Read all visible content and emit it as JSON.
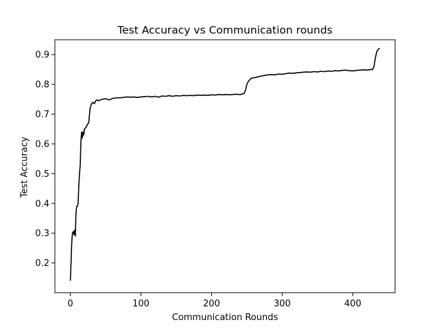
{
  "chart_data": {
    "type": "line",
    "title": "Test Accuracy vs Communication rounds",
    "xlabel": "Communication Rounds",
    "ylabel": "Test Accuracy",
    "xlim": [
      -21.9,
      459.9
    ],
    "ylim": [
      0.1,
      0.95
    ],
    "xticks": [
      "0",
      "100",
      "200",
      "300",
      "400"
    ],
    "yticks": [
      "0.2",
      "0.3",
      "0.4",
      "0.5",
      "0.6",
      "0.7",
      "0.8",
      "0.9"
    ],
    "grid": false,
    "line_color": "#000000",
    "series": [
      {
        "x": [
          0,
          1,
          2,
          3,
          4,
          5,
          6,
          7,
          8,
          9,
          10,
          11,
          12,
          13,
          14,
          15,
          16,
          17,
          18,
          19,
          20,
          22,
          24,
          26,
          28,
          30,
          32,
          34,
          36,
          38,
          40,
          45,
          50,
          55,
          60,
          65,
          70,
          75,
          80,
          85,
          90,
          95,
          100,
          105,
          110,
          115,
          120,
          125,
          130,
          135,
          140,
          145,
          150,
          155,
          160,
          165,
          170,
          175,
          180,
          185,
          190,
          195,
          200,
          205,
          210,
          215,
          220,
          225,
          230,
          235,
          240,
          243,
          246,
          248,
          250,
          252,
          254,
          256,
          258,
          260,
          265,
          270,
          275,
          280,
          285,
          290,
          295,
          300,
          305,
          310,
          315,
          320,
          325,
          330,
          335,
          340,
          345,
          350,
          355,
          360,
          365,
          370,
          375,
          380,
          385,
          390,
          395,
          400,
          405,
          410,
          415,
          420,
          425,
          428,
          430,
          432,
          434,
          436,
          438
        ],
        "y": [
          0.14,
          0.2,
          0.27,
          0.3,
          0.305,
          0.295,
          0.31,
          0.29,
          0.37,
          0.39,
          0.39,
          0.4,
          0.46,
          0.5,
          0.53,
          0.61,
          0.64,
          0.62,
          0.64,
          0.63,
          0.65,
          0.655,
          0.665,
          0.67,
          0.72,
          0.735,
          0.74,
          0.735,
          0.745,
          0.748,
          0.745,
          0.75,
          0.752,
          0.748,
          0.753,
          0.755,
          0.755,
          0.756,
          0.758,
          0.757,
          0.758,
          0.756,
          0.758,
          0.759,
          0.76,
          0.758,
          0.76,
          0.757,
          0.761,
          0.76,
          0.762,
          0.76,
          0.762,
          0.761,
          0.763,
          0.762,
          0.763,
          0.762,
          0.764,
          0.763,
          0.764,
          0.763,
          0.765,
          0.764,
          0.766,
          0.765,
          0.766,
          0.765,
          0.766,
          0.767,
          0.766,
          0.767,
          0.77,
          0.78,
          0.8,
          0.81,
          0.815,
          0.82,
          0.822,
          0.822,
          0.825,
          0.828,
          0.83,
          0.832,
          0.833,
          0.832,
          0.835,
          0.834,
          0.836,
          0.838,
          0.837,
          0.839,
          0.84,
          0.841,
          0.842,
          0.841,
          0.843,
          0.842,
          0.844,
          0.843,
          0.845,
          0.844,
          0.846,
          0.845,
          0.847,
          0.848,
          0.846,
          0.845,
          0.847,
          0.848,
          0.849,
          0.848,
          0.85,
          0.85,
          0.86,
          0.89,
          0.91,
          0.918,
          0.922
        ]
      }
    ]
  }
}
